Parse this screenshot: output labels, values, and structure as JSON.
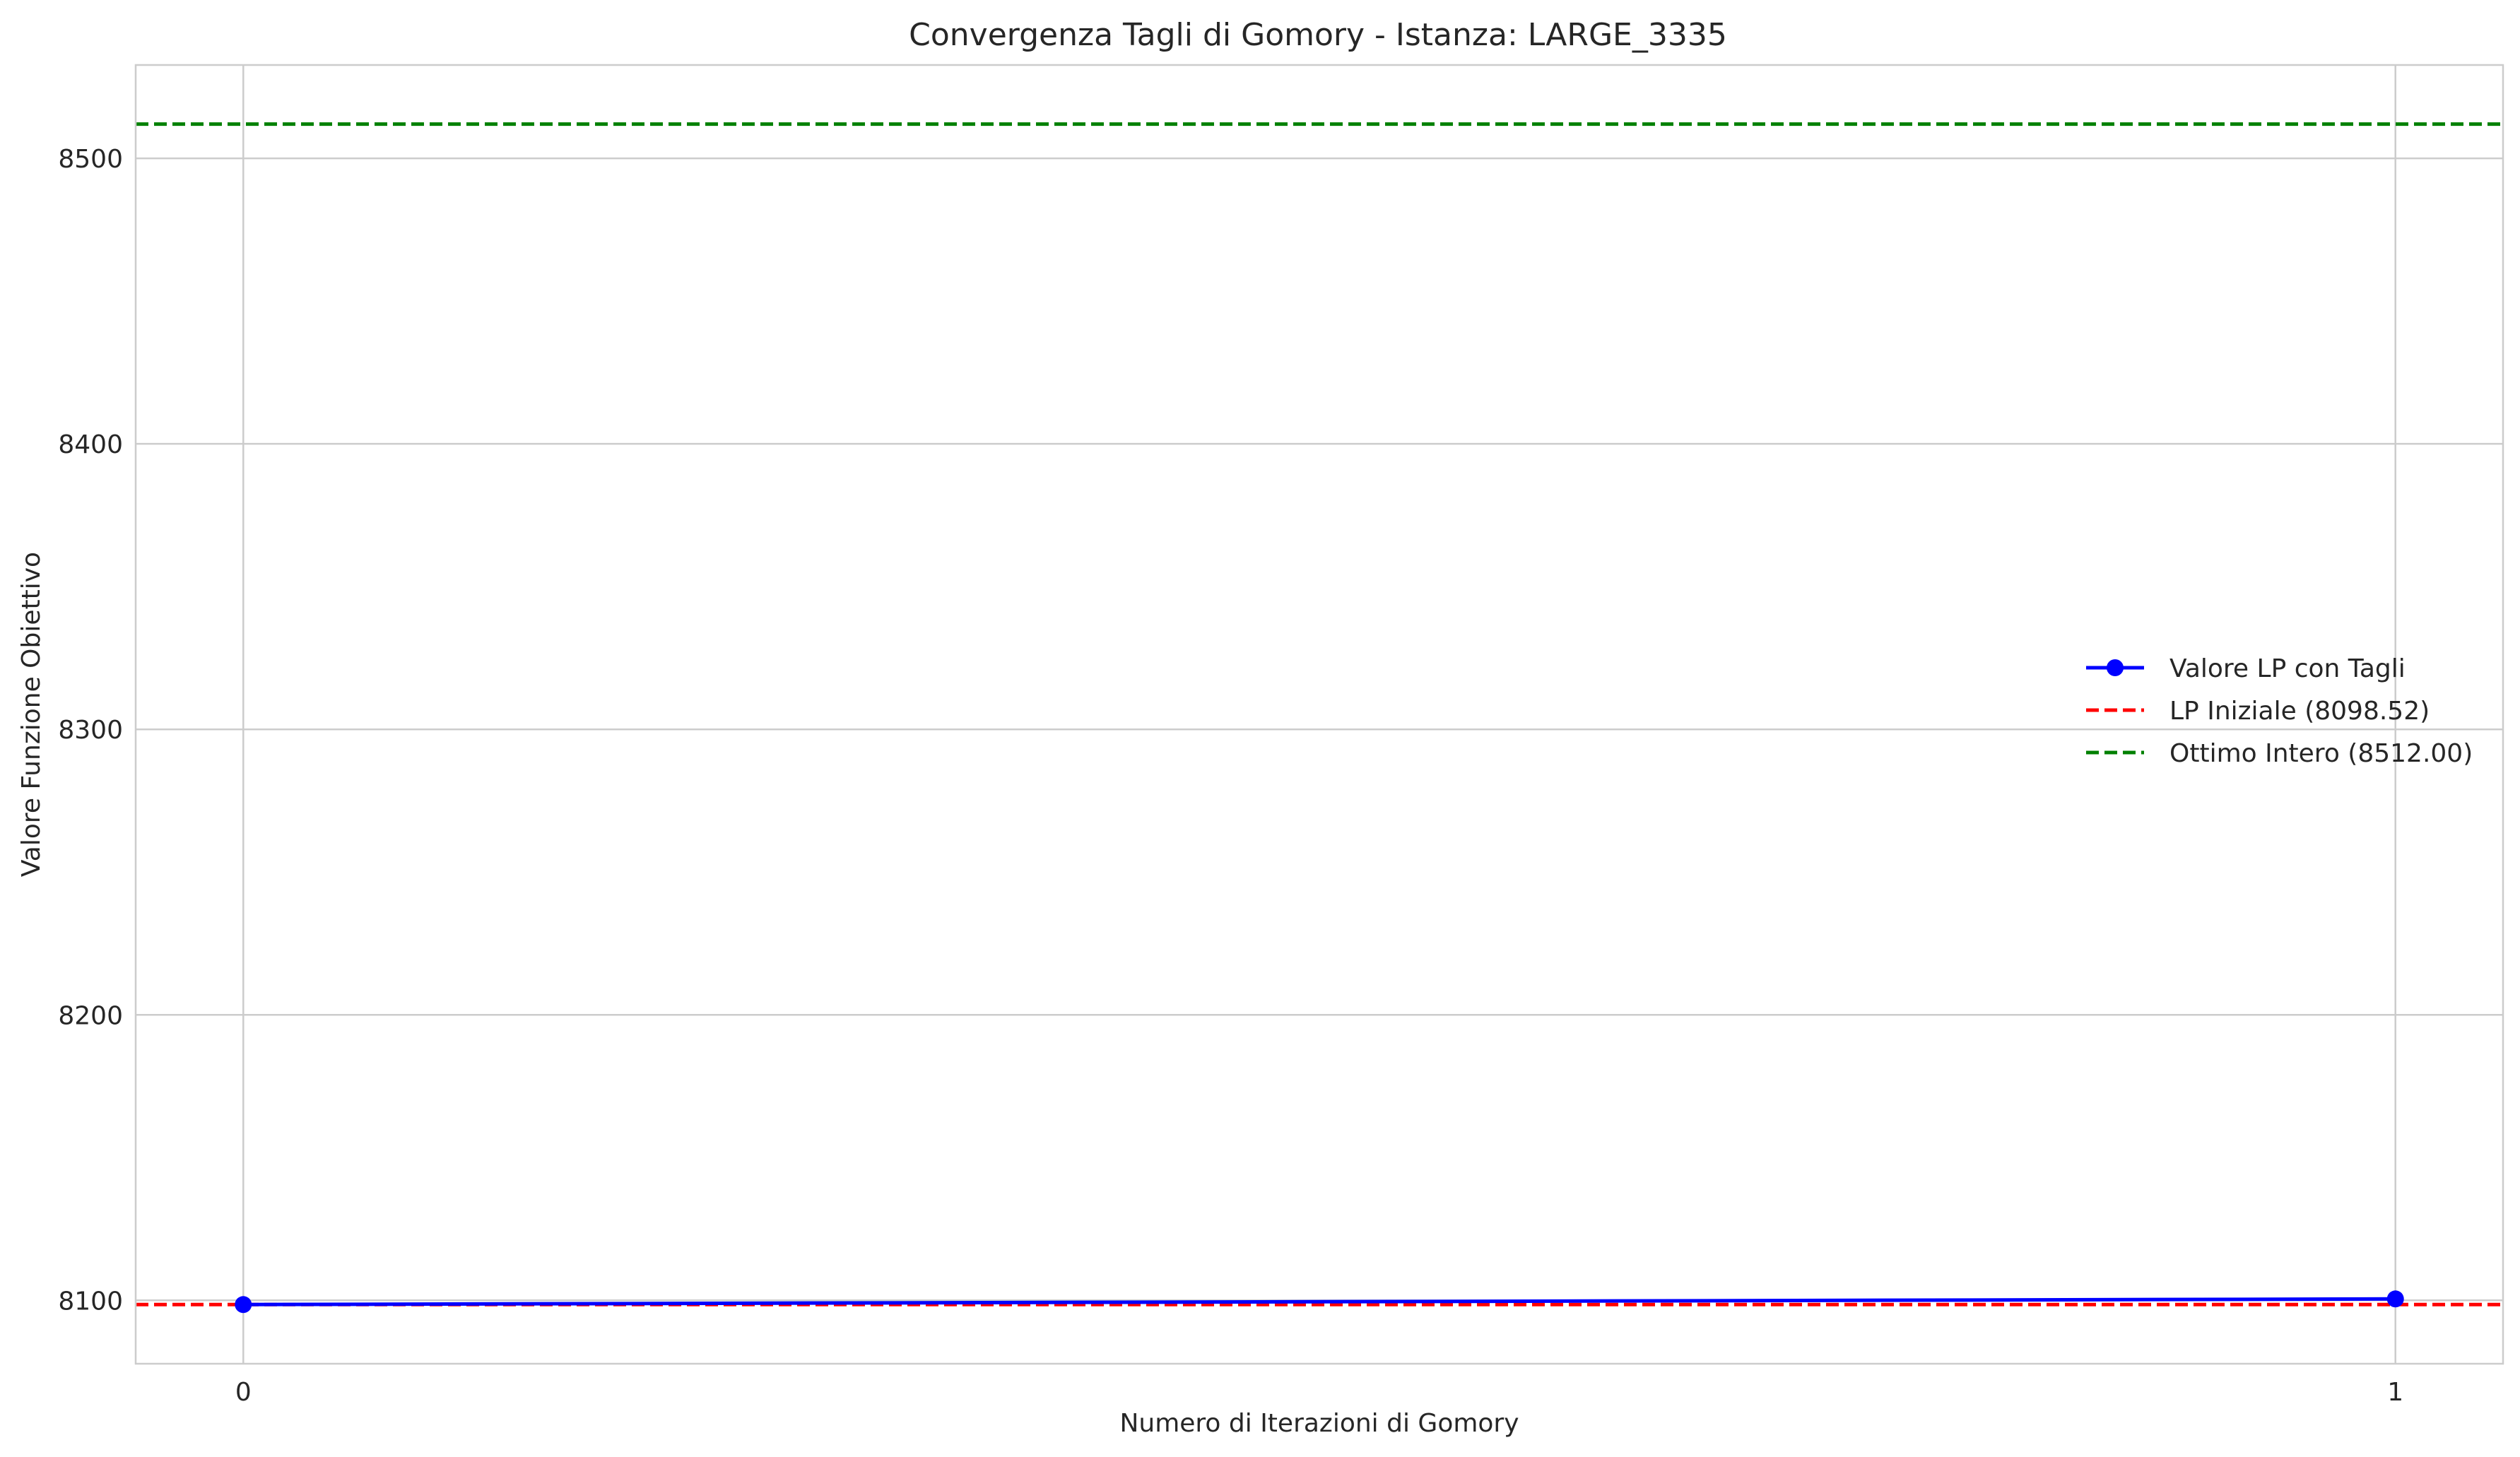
{
  "chart_data": {
    "type": "line",
    "title": "Convergenza Tagli di Gomory - Istanza: LARGE_3335",
    "xlabel": "Numero di Iterazioni di Gomory",
    "ylabel": "Valore Funzione Obiettivo",
    "xlim": [
      -0.05,
      1.05
    ],
    "ylim": [
      8077.8,
      8532.7
    ],
    "xticks": [
      0,
      1
    ],
    "yticks": [
      8100,
      8200,
      8300,
      8400,
      8500
    ],
    "grid": true,
    "legend_position": "center-right",
    "series": [
      {
        "name": "Valore LP con Tagli",
        "x": [
          0,
          1
        ],
        "y": [
          8098.52,
          8100.5
        ],
        "color": "#0000ff",
        "marker": "circle",
        "style": "solid"
      }
    ],
    "reference_lines": [
      {
        "name": "LP Iniziale (8098.52)",
        "y": 8098.52,
        "color": "#ff0000",
        "style": "dashed"
      },
      {
        "name": "Ottimo Intero (8512.00)",
        "y": 8512.0,
        "color": "#008000",
        "style": "dashed"
      }
    ]
  }
}
